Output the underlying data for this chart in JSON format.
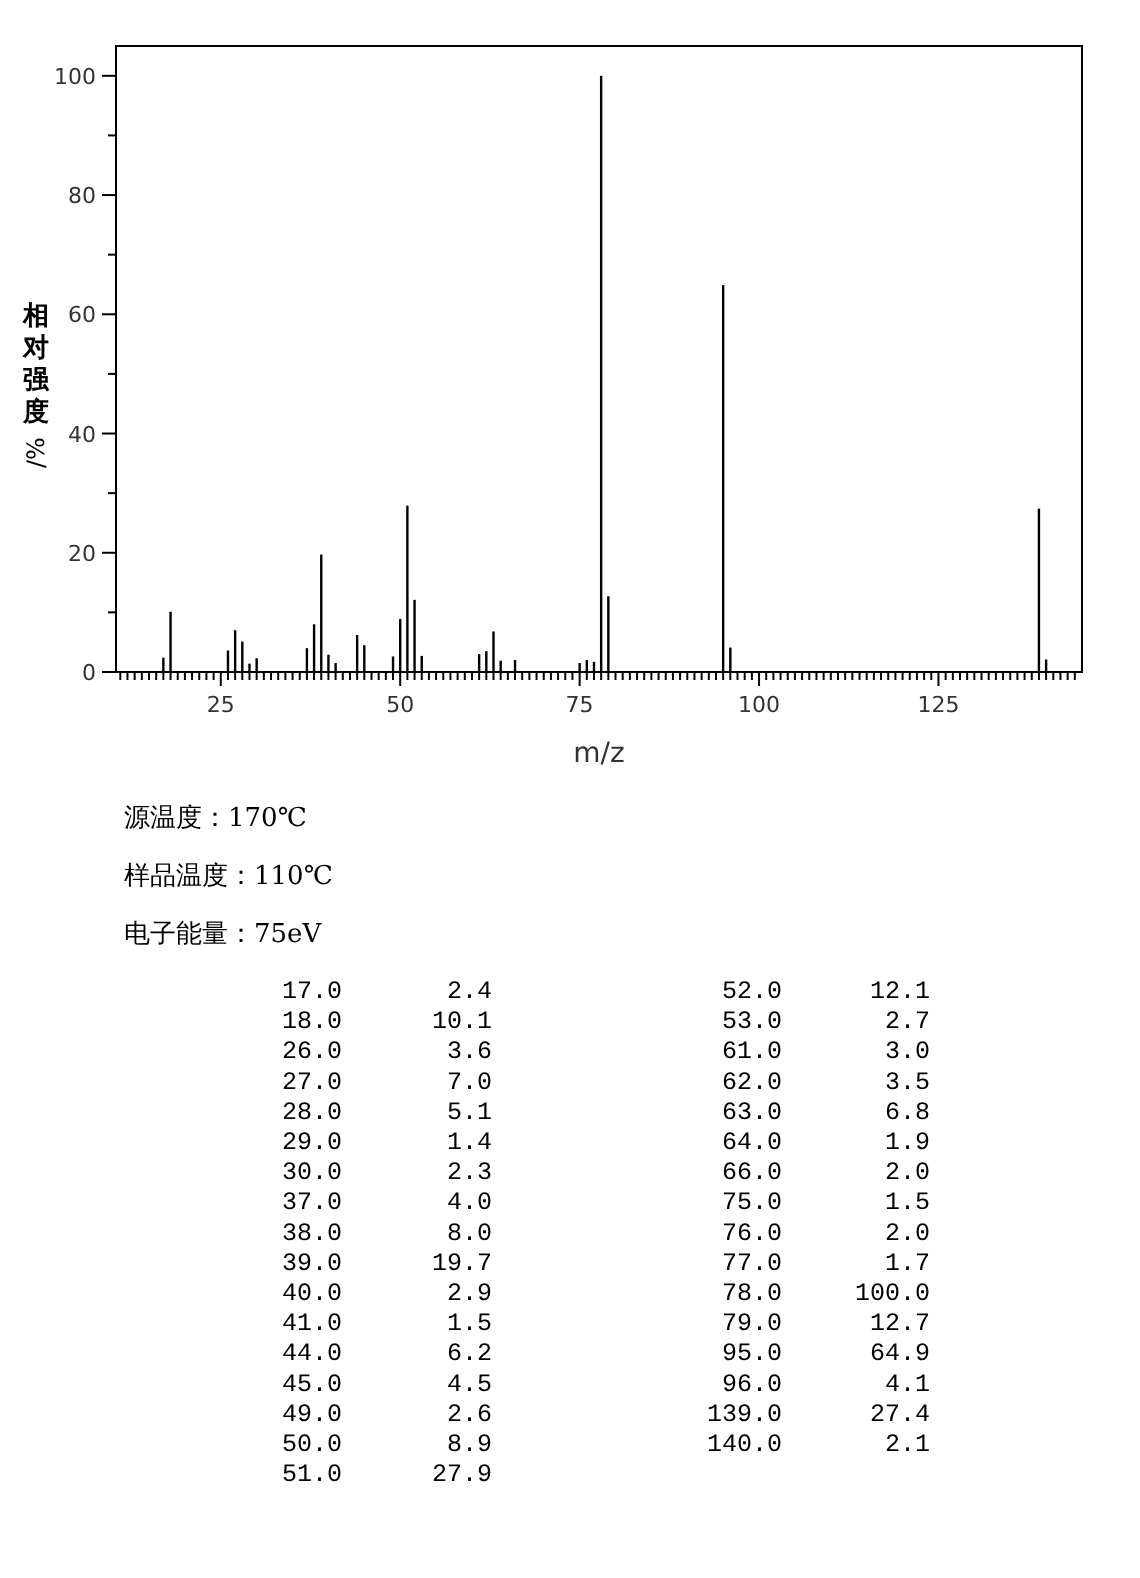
{
  "chart_data": [
    {
      "type": "bar",
      "xlabel": "m/z",
      "ylabel": "相对强度/%",
      "x": [
        17,
        18,
        26,
        27,
        28,
        29,
        30,
        37,
        38,
        39,
        40,
        41,
        44,
        45,
        49,
        50,
        51,
        52,
        53,
        61,
        62,
        63,
        64,
        66,
        75,
        76,
        77,
        78,
        79,
        95,
        96,
        139,
        140
      ],
      "values": [
        2.4,
        10.1,
        3.6,
        7.0,
        5.1,
        1.4,
        2.3,
        4.0,
        8.0,
        19.7,
        2.9,
        1.5,
        6.2,
        4.5,
        2.6,
        8.9,
        27.9,
        12.1,
        2.7,
        3.0,
        3.5,
        6.8,
        1.9,
        2.0,
        1.5,
        2.0,
        1.7,
        100.0,
        12.7,
        64.9,
        4.1,
        27.4,
        2.1
      ],
      "color": "#000000",
      "xlim": [
        10.4,
        145
      ],
      "ylim": [
        0,
        105
      ],
      "xticks": [
        25,
        50,
        75,
        100,
        125,
        {
          "value": 11,
          "label": null
        },
        {
          "value": 12,
          "label": null
        },
        {
          "value": 13,
          "label": null
        },
        {
          "value": 14,
          "label": null
        },
        {
          "value": 15,
          "label": null
        },
        {
          "value": 16,
          "label": null
        },
        {
          "value": 17,
          "label": null
        },
        {
          "value": 18,
          "label": null
        },
        {
          "value": 19,
          "label": null
        },
        {
          "value": 20,
          "label": null
        },
        {
          "value": 21,
          "label": null
        },
        {
          "value": 22,
          "label": null
        },
        {
          "value": 23,
          "label": null
        },
        {
          "value": 24,
          "label": null
        },
        {
          "value": 26,
          "label": null
        },
        {
          "value": 27,
          "label": null
        },
        {
          "value": 28,
          "label": null
        },
        {
          "value": 29,
          "label": null
        },
        {
          "value": 30,
          "label": null
        },
        {
          "value": 31,
          "label": null
        },
        {
          "value": 32,
          "label": null
        },
        {
          "value": 33,
          "label": null
        },
        {
          "value": 34,
          "label": null
        },
        {
          "value": 35,
          "label": null
        },
        {
          "value": 36,
          "label": null
        },
        {
          "value": 37,
          "label": null
        },
        {
          "value": 38,
          "label": null
        },
        {
          "value": 39,
          "label": null
        },
        {
          "value": 40,
          "label": null
        },
        {
          "value": 41,
          "label": null
        },
        {
          "value": 42,
          "label": null
        },
        {
          "value": 43,
          "label": null
        },
        {
          "value": 44,
          "label": null
        },
        {
          "value": 45,
          "label": null
        },
        {
          "value": 46,
          "label": null
        },
        {
          "value": 47,
          "label": null
        },
        {
          "value": 48,
          "label": null
        },
        {
          "value": 49,
          "label": null
        },
        {
          "value": 51,
          "label": null
        },
        {
          "value": 52,
          "label": null
        },
        {
          "value": 53,
          "label": null
        },
        {
          "value": 54,
          "label": null
        },
        {
          "value": 55,
          "label": null
        },
        {
          "value": 56,
          "label": null
        },
        {
          "value": 57,
          "label": null
        },
        {
          "value": 58,
          "label": null
        },
        {
          "value": 59,
          "label": null
        },
        {
          "value": 60,
          "label": null
        },
        {
          "value": 61,
          "label": null
        },
        {
          "value": 62,
          "label": null
        },
        {
          "value": 63,
          "label": null
        },
        {
          "value": 64,
          "label": null
        },
        {
          "value": 65,
          "label": null
        },
        {
          "value": 66,
          "label": null
        },
        {
          "value": 67,
          "label": null
        },
        {
          "value": 68,
          "label": null
        },
        {
          "value": 69,
          "label": null
        },
        {
          "value": 70,
          "label": null
        },
        {
          "value": 71,
          "label": null
        },
        {
          "value": 72,
          "label": null
        },
        {
          "value": 73,
          "label": null
        },
        {
          "value": 74,
          "label": null
        },
        {
          "value": 76,
          "label": null
        },
        {
          "value": 77,
          "label": null
        },
        {
          "value": 78,
          "label": null
        },
        {
          "value": 79,
          "label": null
        },
        {
          "value": 80,
          "label": null
        },
        {
          "value": 81,
          "label": null
        },
        {
          "value": 82,
          "label": null
        },
        {
          "value": 83,
          "label": null
        },
        {
          "value": 84,
          "label": null
        },
        {
          "value": 85,
          "label": null
        },
        {
          "value": 86,
          "label": null
        },
        {
          "value": 87,
          "label": null
        },
        {
          "value": 88,
          "label": null
        },
        {
          "value": 89,
          "label": null
        },
        {
          "value": 90,
          "label": null
        },
        {
          "value": 91,
          "label": null
        },
        {
          "value": 92,
          "label": null
        },
        {
          "value": 93,
          "label": null
        },
        {
          "value": 94,
          "label": null
        },
        {
          "value": 95,
          "label": null
        },
        {
          "value": 96,
          "label": null
        },
        {
          "value": 97,
          "label": null
        },
        {
          "value": 98,
          "label": null
        },
        {
          "value": 99,
          "label": null
        },
        {
          "value": 101,
          "label": null
        },
        {
          "value": 102,
          "label": null
        },
        {
          "value": 103,
          "label": null
        },
        {
          "value": 104,
          "label": null
        },
        {
          "value": 105,
          "label": null
        },
        {
          "value": 106,
          "label": null
        },
        {
          "value": 107,
          "label": null
        },
        {
          "value": 108,
          "label": null
        },
        {
          "value": 109,
          "label": null
        },
        {
          "value": 110,
          "label": null
        },
        {
          "value": 111,
          "label": null
        },
        {
          "value": 112,
          "label": null
        },
        {
          "value": 113,
          "label": null
        },
        {
          "value": 114,
          "label": null
        },
        {
          "value": 115,
          "label": null
        },
        {
          "value": 116,
          "label": null
        },
        {
          "value": 117,
          "label": null
        },
        {
          "value": 118,
          "label": null
        },
        {
          "value": 119,
          "label": null
        },
        {
          "value": 120,
          "label": null
        },
        {
          "value": 121,
          "label": null
        },
        {
          "value": 122,
          "label": null
        },
        {
          "value": 123,
          "label": null
        },
        {
          "value": 124,
          "label": null
        },
        {
          "value": 126,
          "label": null
        },
        {
          "value": 127,
          "label": null
        },
        {
          "value": 128,
          "label": null
        },
        {
          "value": 129,
          "label": null
        },
        {
          "value": 130,
          "label": null
        },
        {
          "value": 131,
          "label": null
        },
        {
          "value": 132,
          "label": null
        },
        {
          "value": 133,
          "label": null
        },
        {
          "value": 134,
          "label": null
        },
        {
          "value": 135,
          "label": null
        },
        {
          "value": 136,
          "label": null
        },
        {
          "value": 137,
          "label": null
        },
        {
          "value": 138,
          "label": null
        },
        {
          "value": 139,
          "label": null
        },
        {
          "value": 140,
          "label": null
        },
        {
          "value": 141,
          "label": null
        },
        {
          "value": 142,
          "label": null
        },
        {
          "value": 143,
          "label": null
        },
        {
          "value": 144,
          "label": null
        }
      ],
      "yticks": [
        0,
        20,
        40,
        60,
        80,
        100,
        {
          "value": 10,
          "label": null
        },
        {
          "value": 30,
          "label": null
        },
        {
          "value": 50,
          "label": null
        },
        {
          "value": 70,
          "label": null
        },
        {
          "value": 90,
          "label": null
        }
      ],
      "grid": false,
      "annotations": [
        "源温度：170℃",
        "样品温度：110℃",
        "电子能量：75eV"
      ]
    },
    {
      "type": "other",
      "categories": [
        "17.0",
        "18.0",
        "26.0",
        "27.0",
        "28.0",
        "29.0",
        "30.0",
        "37.0",
        "38.0",
        "39.0",
        "40.0",
        "41.0",
        "44.0",
        "45.0",
        "49.0",
        "50.0",
        "51.0",
        "52.0",
        "53.0",
        "61.0",
        "62.0",
        "63.0",
        "64.0",
        "66.0",
        "75.0",
        "76.0",
        "77.0",
        "78.0",
        "79.0",
        "95.0",
        "96.0",
        "139.0",
        "140.0"
      ],
      "value_labels": [
        "2.4",
        "10.1",
        "3.6",
        "7.0",
        "5.1",
        "1.4",
        "2.3",
        "4.0",
        "8.0",
        "19.7",
        "2.9",
        "1.5",
        "6.2",
        "4.5",
        "2.6",
        "8.9",
        "27.9",
        "12.1",
        "2.7",
        "3.0",
        "3.5",
        "6.8",
        "1.9",
        "2.0",
        "1.5",
        "2.0",
        "1.7",
        "100.0",
        "12.7",
        "64.9",
        "4.1",
        "27.4",
        "2.1"
      ]
    }
  ]
}
